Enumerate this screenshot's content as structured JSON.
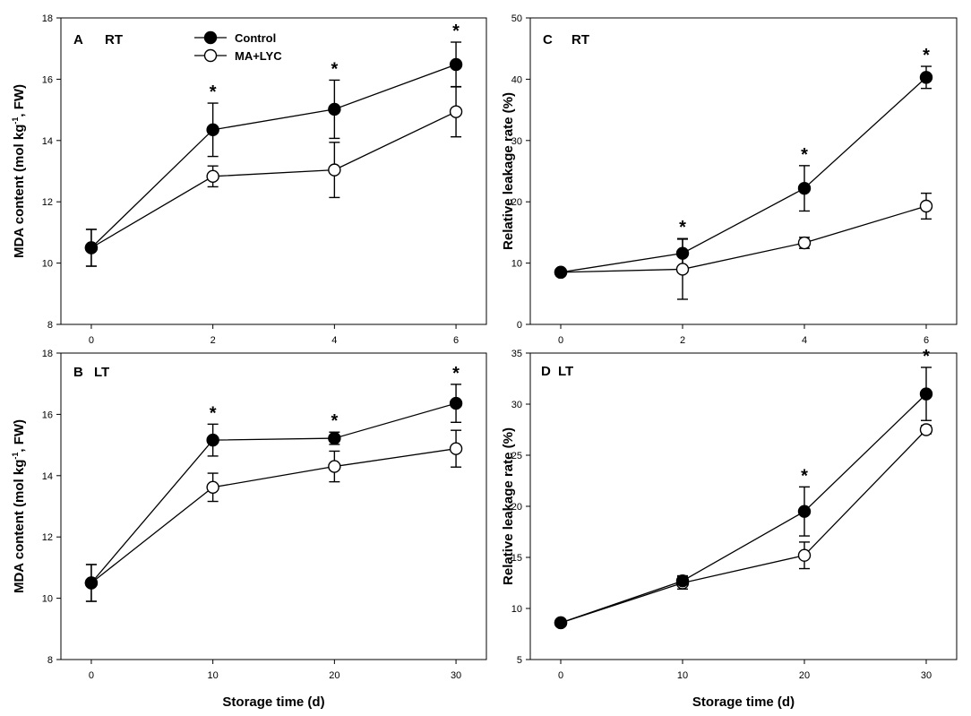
{
  "figure": {
    "xlabel": "Storage time (d)",
    "legend": {
      "placement": "top-center of panel A",
      "entries": [
        {
          "name": "Control",
          "marker": "filled-circle"
        },
        {
          "name": "MA+LYC",
          "marker": "open-circle"
        }
      ]
    }
  },
  "chart_data": [
    {
      "type": "line",
      "panel": "A",
      "condition": "RT",
      "ylabel_main": "MDA content (mol kg",
      "ylabel_sup": "-1",
      "ylabel_tail": ", FW)",
      "x": [
        0,
        2,
        4,
        6
      ],
      "xticks": [
        0,
        2,
        4,
        6
      ],
      "xlim": [
        -0.5,
        6.5
      ],
      "yticks": [
        8,
        10,
        12,
        14,
        16,
        18
      ],
      "ylim": [
        8,
        18
      ],
      "series": [
        {
          "name": "Control",
          "values": [
            10.5,
            14.35,
            15.02,
            16.48
          ],
          "errors": [
            0.6,
            0.87,
            0.95,
            0.73
          ]
        },
        {
          "name": "MA+LYC",
          "values": [
            10.5,
            12.83,
            13.04,
            14.94
          ],
          "errors": [
            0.6,
            0.34,
            0.9,
            0.82
          ]
        }
      ],
      "significance": [
        {
          "x": 2,
          "label": "*"
        },
        {
          "x": 4,
          "label": "*"
        },
        {
          "x": 6,
          "label": "*"
        }
      ]
    },
    {
      "type": "line",
      "panel": "B",
      "condition": "LT",
      "ylabel_main": "MDA content (mol kg",
      "ylabel_sup": "-1",
      "ylabel_tail": ", FW)",
      "x": [
        0,
        10,
        20,
        30
      ],
      "xticks": [
        0,
        10,
        20,
        30
      ],
      "xlim": [
        -2.5,
        32.5
      ],
      "yticks": [
        8,
        10,
        12,
        14,
        16,
        18
      ],
      "ylim": [
        8,
        18
      ],
      "series": [
        {
          "name": "Control",
          "values": [
            10.5,
            15.16,
            15.22,
            16.36
          ],
          "errors": [
            0.6,
            0.52,
            0.2,
            0.62
          ]
        },
        {
          "name": "MA+LYC",
          "values": [
            10.5,
            13.62,
            14.3,
            14.88
          ],
          "errors": [
            0.6,
            0.46,
            0.5,
            0.6
          ]
        }
      ],
      "significance": [
        {
          "x": 10,
          "label": "*"
        },
        {
          "x": 20,
          "label": "*"
        },
        {
          "x": 30,
          "label": "*"
        }
      ]
    },
    {
      "type": "line",
      "panel": "C",
      "condition": "RT",
      "ylabel_main": "Relative leakage rate (%)",
      "ylabel_sup": "",
      "ylabel_tail": "",
      "x": [
        0,
        2,
        4,
        6
      ],
      "xticks": [
        0,
        2,
        4,
        6
      ],
      "xlim": [
        -0.5,
        6.5
      ],
      "yticks": [
        0,
        10,
        20,
        30,
        40,
        50
      ],
      "ylim": [
        0,
        50
      ],
      "series": [
        {
          "name": "Control",
          "values": [
            8.5,
            11.6,
            22.2,
            40.3
          ],
          "errors": [
            0.5,
            2.4,
            3.7,
            1.8
          ]
        },
        {
          "name": "MA+LYC",
          "values": [
            8.5,
            9.0,
            13.3,
            19.3
          ],
          "errors": [
            0.5,
            4.9,
            0.9,
            2.1
          ]
        }
      ],
      "significance": [
        {
          "x": 2,
          "label": "*"
        },
        {
          "x": 4,
          "label": "*"
        },
        {
          "x": 6,
          "label": "*"
        }
      ]
    },
    {
      "type": "line",
      "panel": "D",
      "condition": "LT",
      "ylabel_main": "Relative leakage rate (%)",
      "ylabel_sup": "",
      "ylabel_tail": "",
      "x": [
        0,
        10,
        20,
        30
      ],
      "xticks": [
        0,
        10,
        20,
        30
      ],
      "xlim": [
        -2.5,
        32.5
      ],
      "yticks": [
        5,
        10,
        15,
        20,
        25,
        30,
        35
      ],
      "ylim": [
        5,
        35
      ],
      "series": [
        {
          "name": "Control",
          "values": [
            8.6,
            12.7,
            19.5,
            31.0
          ],
          "errors": [
            0.3,
            0.5,
            2.4,
            2.6
          ]
        },
        {
          "name": "MA+LYC",
          "values": [
            8.6,
            12.5,
            15.2,
            27.5
          ],
          "errors": [
            0.3,
            0.6,
            1.3,
            0.4
          ]
        }
      ],
      "significance": [
        {
          "x": 20,
          "label": "*"
        },
        {
          "x": 30,
          "label": "*"
        }
      ]
    }
  ]
}
